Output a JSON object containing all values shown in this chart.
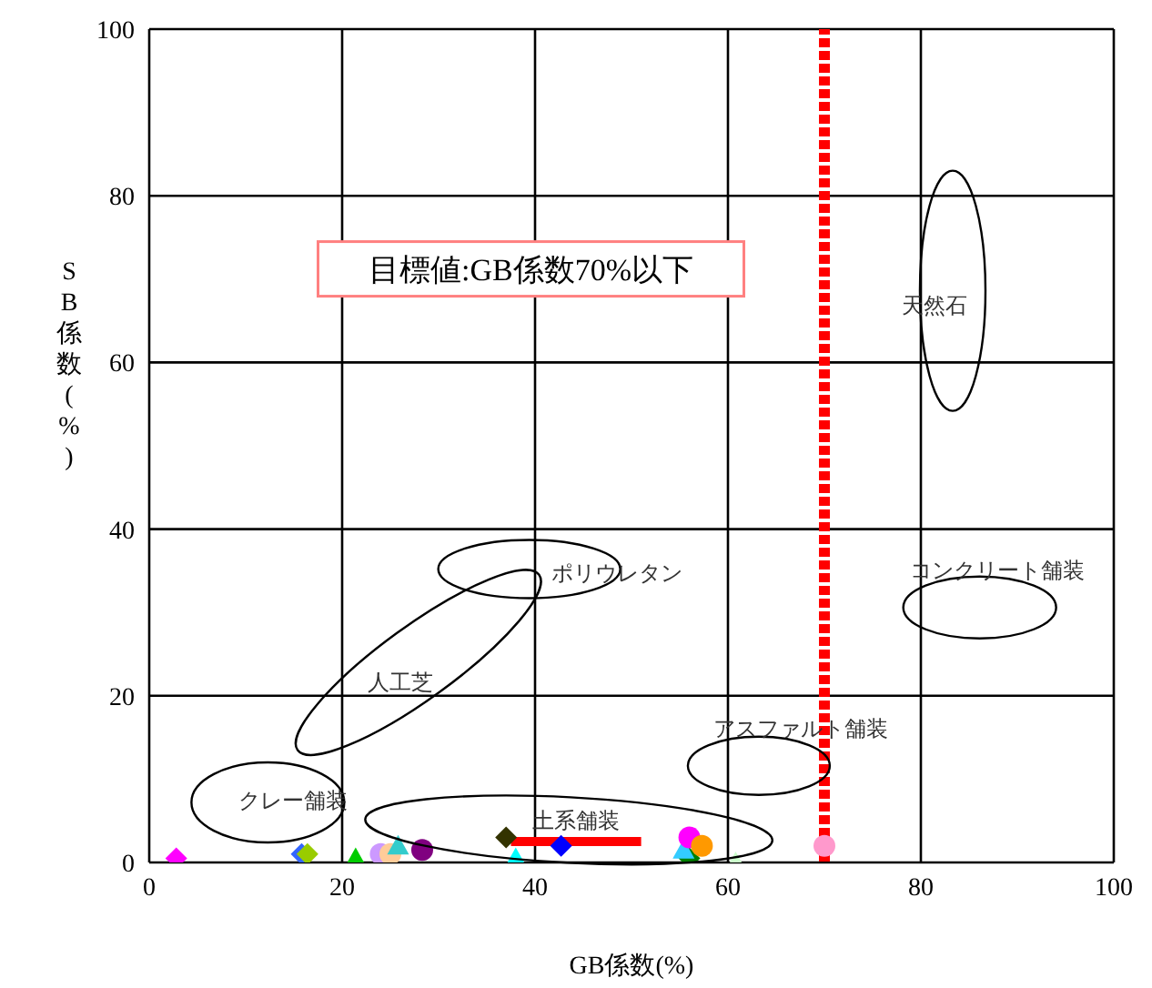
{
  "chart_data": {
    "type": "scatter",
    "xlabel": "GB係数(%)",
    "ylabel": "SB係数(%)",
    "xlim": [
      0,
      100
    ],
    "ylim": [
      0,
      100
    ],
    "xticks": [
      0,
      20,
      40,
      60,
      80,
      100
    ],
    "yticks": [
      0,
      20,
      40,
      60,
      80,
      100
    ],
    "grid": true,
    "legend": false,
    "series": [
      {
        "color": "#ff00ff",
        "marker": "diamond",
        "x": [
          2.8
        ],
        "values": [
          0.5
        ]
      },
      {
        "color": "#3366ff",
        "marker": "diamond",
        "x": [
          15.8
        ],
        "values": [
          1
        ]
      },
      {
        "color": "#99cc00",
        "marker": "diamond",
        "x": [
          16.4
        ],
        "values": [
          1
        ]
      },
      {
        "color": "#00cc00",
        "marker": "triangle",
        "x": [
          21.4
        ],
        "values": [
          0.5
        ]
      },
      {
        "color": "#cc99ff",
        "marker": "circle",
        "x": [
          24
        ],
        "values": [
          1
        ]
      },
      {
        "color": "#ffcc99",
        "marker": "circle",
        "x": [
          25
        ],
        "values": [
          1
        ]
      },
      {
        "color": "#33cccc",
        "marker": "triangle",
        "x": [
          25.8
        ],
        "values": [
          2
        ]
      },
      {
        "color": "#800080",
        "marker": "circle",
        "x": [
          28.3
        ],
        "values": [
          1.5
        ]
      },
      {
        "color": "#333300",
        "marker": "diamond",
        "x": [
          37
        ],
        "values": [
          3
        ]
      },
      {
        "color": "#00ffff",
        "marker": "triangle",
        "x": [
          38
        ],
        "values": [
          0.5
        ]
      },
      {
        "color": "#0000ff",
        "marker": "diamond",
        "x": [
          42.7
        ],
        "values": [
          2
        ]
      },
      {
        "color": "#008000",
        "marker": "diamond",
        "x": [
          56
        ],
        "values": [
          0.5
        ]
      },
      {
        "color": "#33ccff",
        "marker": "triangle",
        "x": [
          55.4
        ],
        "values": [
          1.5
        ]
      },
      {
        "color": "#ff00ff",
        "marker": "circle",
        "x": [
          56
        ],
        "values": [
          3
        ]
      },
      {
        "color": "#ff9900",
        "marker": "circle",
        "x": [
          57.3
        ],
        "values": [
          2
        ]
      },
      {
        "color": "#ccffcc",
        "marker": "triangle",
        "x": [
          60.8
        ],
        "values": [
          0
        ]
      },
      {
        "color": "#ff99cc",
        "marker": "circle",
        "x": [
          70
        ],
        "values": [
          2
        ]
      },
      {
        "type": "line",
        "color": "#ff0000",
        "marker": "none",
        "x": [
          37.5,
          51
        ],
        "values": [
          2.5,
          2.5
        ]
      }
    ],
    "ref_lines": [
      {
        "axis": "x",
        "value": 70,
        "color": "#ff0000",
        "line_style": "dotted"
      }
    ],
    "annotations": [
      "目標値:GB係数70%以下",
      "天然石",
      "コンクリート舗装",
      "ポリウレタン",
      "人工芝",
      "アスファルト舗装",
      "クレー舗装",
      "土系舗装"
    ]
  }
}
